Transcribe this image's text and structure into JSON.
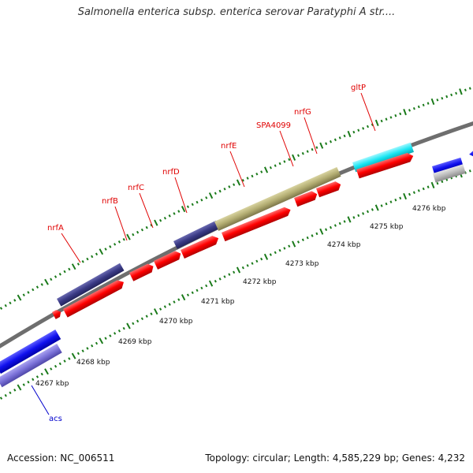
{
  "title": "Salmonella enterica subsp. enterica serovar Paratyphi A str....",
  "footer": {
    "accession": "Accession: NC_006511",
    "summary": "Topology: circular; Length: 4,585,229 bp; Genes: 4,232"
  },
  "colors": {
    "backbone": "#7f7f7f",
    "cds_forward": "#ff0000",
    "ticks": "#1a7a1a",
    "label_red": "#e00000",
    "label_blue": "#0000cc"
  },
  "scale": {
    "unit": "kbp",
    "ticks": [
      {
        "label": "4267 kbp",
        "kbp": 4267
      },
      {
        "label": "4268 kbp",
        "kbp": 4268
      },
      {
        "label": "4269 kbp",
        "kbp": 4269
      },
      {
        "label": "4270 kbp",
        "kbp": 4270
      },
      {
        "label": "4271 kbp",
        "kbp": 4271
      },
      {
        "label": "4272 kbp",
        "kbp": 4272
      },
      {
        "label": "4273 kbp",
        "kbp": 4273
      },
      {
        "label": "4274 kbp",
        "kbp": 4274
      },
      {
        "label": "4275 kbp",
        "kbp": 4275
      },
      {
        "label": "4276 kbp",
        "kbp": 4276
      }
    ]
  },
  "genes": [
    {
      "label": "nrfA",
      "color": "label_red"
    },
    {
      "label": "nrfB",
      "color": "label_red"
    },
    {
      "label": "nrfC",
      "color": "label_red"
    },
    {
      "label": "nrfD",
      "color": "label_red"
    },
    {
      "label": "nrfE",
      "color": "label_red"
    },
    {
      "label": "SPA4099",
      "color": "label_red"
    },
    {
      "label": "nrfG",
      "color": "label_red"
    },
    {
      "label": "gltP",
      "color": "label_red"
    },
    {
      "label": "acs",
      "color": "label_blue"
    }
  ]
}
